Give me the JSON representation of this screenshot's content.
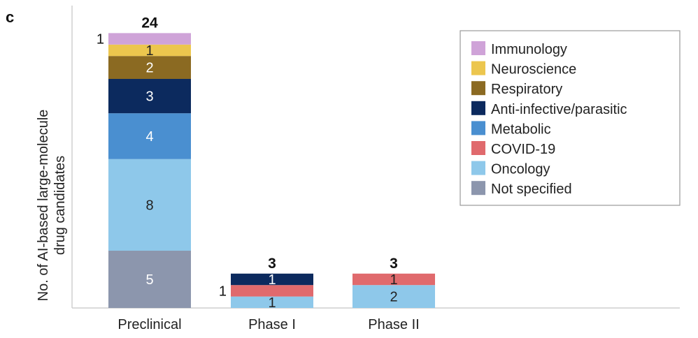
{
  "panel_label": "c",
  "chart_data": {
    "type": "bar",
    "stacked": true,
    "ylabel_lines": [
      "No. of AI-based large-molecule",
      "drug candidates"
    ],
    "xlabel": "",
    "categories": [
      "Preclinical",
      "Phase I",
      "Phase II"
    ],
    "totals": [
      "24",
      "3",
      "3"
    ],
    "ylim": [
      0,
      26
    ],
    "grid": false,
    "legend_position": "top-right",
    "series": [
      {
        "name": "Not specified",
        "color": "#8c96ad",
        "values": [
          5,
          0,
          0
        ]
      },
      {
        "name": "Oncology",
        "color": "#8ec8ea",
        "values": [
          8,
          1,
          2
        ]
      },
      {
        "name": "COVID-19",
        "color": "#e06a6d",
        "values": [
          0,
          1,
          1
        ]
      },
      {
        "name": "Metabolic",
        "color": "#4a8fd0",
        "values": [
          4,
          0,
          0
        ]
      },
      {
        "name": "Anti-infective/parasitic",
        "color": "#0c2a5e",
        "values": [
          3,
          1,
          0
        ]
      },
      {
        "name": "Respiratory",
        "color": "#8b6a22",
        "values": [
          2,
          0,
          0
        ]
      },
      {
        "name": "Neuroscience",
        "color": "#ecc64e",
        "values": [
          1,
          0,
          0
        ]
      },
      {
        "name": "Immunology",
        "color": "#cfa3d8",
        "values": [
          1,
          0,
          0
        ]
      }
    ],
    "legend_order": [
      "Immunology",
      "Neuroscience",
      "Respiratory",
      "Anti-infective/parasitic",
      "Metabolic",
      "COVID-19",
      "Oncology",
      "Not specified"
    ],
    "outside_label_segments": [
      {
        "category": "Preclinical",
        "series": "Immunology"
      },
      {
        "category": "Phase I",
        "series": "COVID-19"
      }
    ]
  }
}
